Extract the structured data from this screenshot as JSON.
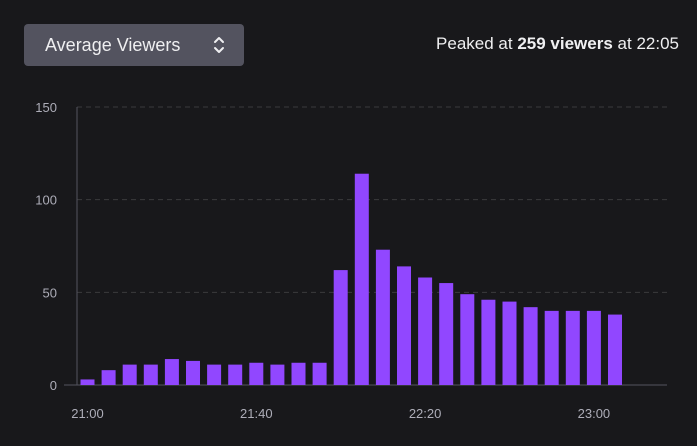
{
  "header": {
    "metric_select": {
      "label": "Average Viewers",
      "icon": "sort-updown-icon"
    },
    "peak": {
      "prefix": "Peaked at",
      "viewers_text": "259 viewers",
      "middle": "at",
      "time": "22:05"
    }
  },
  "colors": {
    "background": "#18181b",
    "bar": "#9147ff",
    "select_bg": "#53535f",
    "grid": "#3a3a3d",
    "tick_text": "#adadb8"
  },
  "chart_data": {
    "type": "bar",
    "title": "",
    "xlabel": "",
    "ylabel": "",
    "ylim": [
      0,
      150
    ],
    "yticks": [
      0,
      50,
      100,
      150
    ],
    "grid": true,
    "x_ticks": [
      "21:00",
      "21:40",
      "22:20",
      "23:00"
    ],
    "series": [
      {
        "values": [
          3,
          8,
          11,
          11,
          14,
          13,
          11,
          11,
          12,
          11,
          12,
          12,
          62,
          114,
          73,
          64,
          58,
          55,
          49,
          46,
          45,
          42,
          40,
          40,
          40,
          38
        ]
      }
    ]
  }
}
